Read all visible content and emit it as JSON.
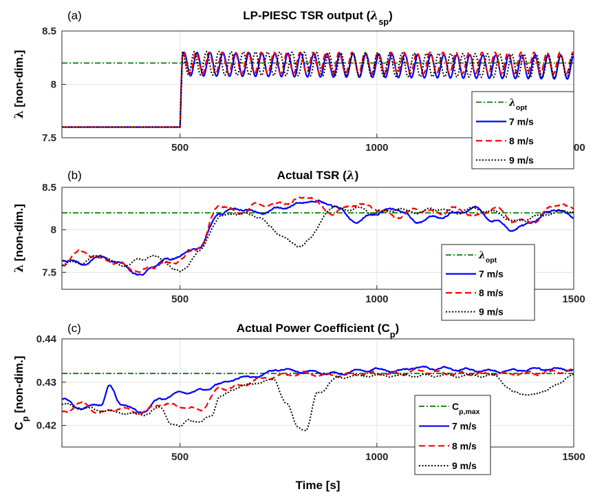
{
  "figure": {
    "xlabel": "Time [s]"
  },
  "chart_data": [
    {
      "type": "line",
      "panel_label": "(a)",
      "title": "LP-PIESC TSR output (λ_sp)",
      "title_parts": {
        "main": "LP-PIESC TSR output (",
        "sym": "λ",
        "sub": "sp",
        "close": ")"
      },
      "ylabel": "λ [non-dim.]",
      "xlim": [
        200,
        1500
      ],
      "ylim": [
        7.5,
        8.5
      ],
      "xticks": [
        500,
        1000,
        1500
      ],
      "yticks": [
        7.5,
        8,
        8.5
      ],
      "ytick_labels": [
        "7.5",
        "8",
        "8.5"
      ],
      "grid": true,
      "legend_position": "bottom-right",
      "series": [
        {
          "name": "λ_opt",
          "legend_label": {
            "sym": "λ",
            "sub": "opt"
          },
          "style": "dashdot",
          "color": "#007f00",
          "model": {
            "kind": "const",
            "value": 8.2
          }
        },
        {
          "name": "7 m/s",
          "style": "solid",
          "color": "#0000ff",
          "model": {
            "kind": "step_osc",
            "base": 7.6,
            "step_at": 500,
            "rise": 5,
            "mean": 8.19,
            "amp": 0.11,
            "period": 33,
            "phase": 0.0,
            "drift": -0.03
          }
        },
        {
          "name": "8 m/s",
          "style": "dashed",
          "color": "#ff0000",
          "model": {
            "kind": "step_osc",
            "base": 7.6,
            "step_at": 500,
            "rise": 5,
            "mean": 8.2,
            "amp": 0.1,
            "period": 33,
            "phase": 0.4,
            "drift": 0.0
          }
        },
        {
          "name": "9 m/s",
          "style": "dotted",
          "color": "#000000",
          "model": {
            "kind": "step_osc",
            "base": 7.6,
            "step_at": 500,
            "rise": 5,
            "mean": 8.2,
            "amp": 0.11,
            "period": 31,
            "phase": 0.8,
            "drift": -0.03
          }
        }
      ]
    },
    {
      "type": "line",
      "panel_label": "(b)",
      "title": "Actual TSR (λ)",
      "title_parts": {
        "main": "Actual TSR (",
        "sym": "λ",
        "sub": "",
        "close": ")"
      },
      "ylabel": "λ [non-dim.]",
      "xlim": [
        200,
        1500
      ],
      "ylim": [
        7.3,
        8.5
      ],
      "xticks": [
        500,
        1000,
        1500
      ],
      "yticks": [
        7.5,
        8,
        8.5
      ],
      "ytick_labels": [
        "7.5",
        "8",
        "8.5"
      ],
      "grid": true,
      "legend_position": "bottom-right",
      "series": [
        {
          "name": "λ_opt",
          "legend_label": {
            "sym": "λ",
            "sub": "opt"
          },
          "style": "dashdot",
          "color": "#007f00",
          "model": {
            "kind": "const",
            "value": 8.2
          }
        },
        {
          "name": "7 m/s",
          "style": "solid",
          "color": "#0000ff",
          "model": {
            "kind": "pts",
            "noise": 0.03,
            "seed": 7,
            "x": [
              200,
              250,
              300,
              350,
              400,
              430,
              470,
              500,
              550,
              600,
              650,
              700,
              750,
              800,
              830,
              880,
              950,
              1000,
              1050,
              1100,
              1150,
              1200,
              1250,
              1300,
              1350,
              1400,
              1450,
              1500
            ],
            "y": [
              7.65,
              7.6,
              7.68,
              7.6,
              7.45,
              7.58,
              7.65,
              7.7,
              7.8,
              8.2,
              8.25,
              8.2,
              8.25,
              8.3,
              8.35,
              8.3,
              8.1,
              8.2,
              8.25,
              8.1,
              8.15,
              8.2,
              8.25,
              8.1,
              8.0,
              8.1,
              8.25,
              8.15
            ]
          }
        },
        {
          "name": "8 m/s",
          "style": "dashed",
          "color": "#ff0000",
          "model": {
            "kind": "pts",
            "noise": 0.035,
            "seed": 13,
            "x": [
              200,
              250,
              300,
              350,
              400,
              430,
              470,
              500,
              550,
              600,
              650,
              700,
              750,
              800,
              830,
              880,
              950,
              1000,
              1050,
              1100,
              1150,
              1200,
              1250,
              1300,
              1350,
              1400,
              1450,
              1500
            ],
            "y": [
              7.6,
              7.75,
              7.65,
              7.6,
              7.5,
              7.58,
              7.6,
              7.65,
              7.8,
              8.3,
              8.2,
              8.3,
              8.3,
              8.35,
              8.4,
              8.2,
              8.3,
              8.25,
              8.15,
              8.25,
              8.2,
              8.25,
              8.15,
              8.25,
              8.1,
              8.1,
              8.3,
              8.25
            ]
          }
        },
        {
          "name": "9 m/s",
          "style": "dotted",
          "color": "#000000",
          "model": {
            "kind": "pts",
            "noise": 0.03,
            "seed": 21,
            "x": [
              200,
              250,
              300,
              350,
              400,
              430,
              470,
              500,
              550,
              600,
              650,
              700,
              750,
              800,
              830,
              880,
              950,
              1000,
              1050,
              1100,
              1150,
              1200,
              1250,
              1300,
              1350,
              1400,
              1450,
              1500
            ],
            "y": [
              7.6,
              7.62,
              7.7,
              7.58,
              7.65,
              7.7,
              7.6,
              7.5,
              7.75,
              8.15,
              8.2,
              8.15,
              7.95,
              7.8,
              7.9,
              8.25,
              8.25,
              8.2,
              8.25,
              8.2,
              8.25,
              8.2,
              8.25,
              8.2,
              8.1,
              8.15,
              8.2,
              8.22
            ]
          }
        }
      ]
    },
    {
      "type": "line",
      "panel_label": "(c)",
      "title": "Actual Power Coefficient (C_p)",
      "title_parts": {
        "main": "Actual Power Coefficient (",
        "sym": "C",
        "sub": "p",
        "close": ")"
      },
      "ylabel": "C_p [non-dim.]",
      "xlim": [
        200,
        1500
      ],
      "ylim": [
        0.415,
        0.44
      ],
      "xticks": [
        500,
        1000,
        1500
      ],
      "yticks": [
        0.42,
        0.43,
        0.44
      ],
      "ytick_labels": [
        "0.42",
        "0.43",
        "0.44"
      ],
      "grid": true,
      "legend_position": "bottom-right",
      "series": [
        {
          "name": "C_p,max",
          "legend_label": {
            "sym": "C",
            "sub": "p,max"
          },
          "style": "dashdot",
          "color": "#007f00",
          "model": {
            "kind": "const",
            "value": 0.432
          }
        },
        {
          "name": "7 m/s",
          "style": "solid",
          "color": "#0000ff",
          "model": {
            "kind": "pts",
            "noise": 0.0005,
            "seed": 3,
            "x": [
              200,
              250,
              300,
              320,
              350,
              400,
              450,
              500,
              550,
              600,
              650,
              700,
              750,
              800,
              900,
              1000,
              1050,
              1100,
              1200,
              1300,
              1400,
              1500
            ],
            "y": [
              0.426,
              0.424,
              0.425,
              0.429,
              0.425,
              0.423,
              0.426,
              0.4275,
              0.428,
              0.4295,
              0.431,
              0.4315,
              0.433,
              0.4325,
              0.432,
              0.433,
              0.4325,
              0.4335,
              0.433,
              0.4325,
              0.433,
              0.433
            ]
          }
        },
        {
          "name": "8 m/s",
          "style": "dashed",
          "color": "#ff0000",
          "model": {
            "kind": "pts",
            "noise": 0.0006,
            "seed": 5,
            "x": [
              200,
              250,
              300,
              350,
              400,
              450,
              500,
              550,
              600,
              650,
              700,
              750,
              800,
              900,
              1000,
              1050,
              1100,
              1200,
              1300,
              1400,
              1500
            ],
            "y": [
              0.423,
              0.425,
              0.423,
              0.424,
              0.423,
              0.425,
              0.4245,
              0.4235,
              0.4285,
              0.429,
              0.4305,
              0.4315,
              0.432,
              0.4315,
              0.432,
              0.432,
              0.4325,
              0.432,
              0.432,
              0.432,
              0.4325
            ]
          }
        },
        {
          "name": "9 m/s",
          "style": "dotted",
          "color": "#000000",
          "model": {
            "kind": "pts",
            "noise": 0.0005,
            "seed": 9,
            "x": [
              200,
              250,
              300,
              350,
              400,
              450,
              480,
              500,
              520,
              550,
              580,
              600,
              650,
              700,
              740,
              770,
              800,
              820,
              850,
              900,
              950,
              1000,
              1100,
              1200,
              1300,
              1350,
              1400,
              1450,
              1500
            ],
            "y": [
              0.425,
              0.424,
              0.4235,
              0.423,
              0.4225,
              0.424,
              0.4205,
              0.4195,
              0.4215,
              0.4205,
              0.4225,
              0.4265,
              0.429,
              0.43,
              0.4305,
              0.425,
              0.4195,
              0.419,
              0.4275,
              0.431,
              0.4315,
              0.4315,
              0.4315,
              0.4315,
              0.4315,
              0.4275,
              0.427,
              0.429,
              0.432
            ]
          }
        }
      ]
    }
  ]
}
